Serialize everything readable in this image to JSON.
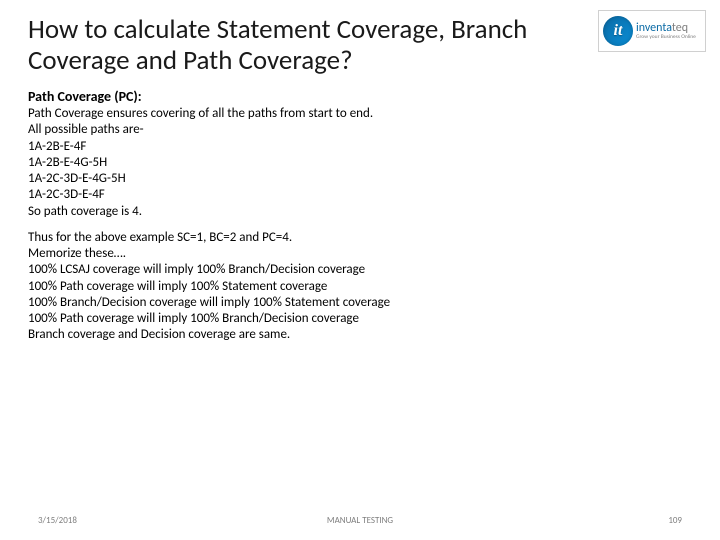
{
  "title": "How to calculate Statement Coverage, Branch Coverage and Path Coverage?",
  "logo": {
    "badge_letter": "it",
    "word_prefix": "inventa",
    "word_suffix": "teq",
    "tagline": "Grow your Business Online"
  },
  "subheading": "Path Coverage (PC):",
  "block1": {
    "l0": "Path Coverage ensures covering of all the paths from start to end.",
    "l1": "All possible paths are-",
    "l2": "1A-2B-E-4F",
    "l3": "1A-2B-E-4G-5H",
    "l4": "1A-2C-3D-E-4G-5H",
    "l5": "1A-2C-3D-E-4F",
    "l6": "So path coverage is 4."
  },
  "block2": {
    "l0": "Thus for the above example SC=1, BC=2 and PC=4.",
    "l1": "Memorize these….",
    "l2": "100% LCSAJ coverage will imply 100% Branch/Decision coverage",
    "l3": "100% Path coverage will imply 100% Statement coverage",
    "l4": "100% Branch/Decision coverage will imply 100% Statement coverage",
    "l5": "100% Path coverage will imply 100% Branch/Decision coverage",
    "l6": "Branch coverage and Decision coverage are same."
  },
  "footer": {
    "date": "3/15/2018",
    "center": "MANUAL TESTING",
    "page": "109"
  },
  "colors": {
    "title": "#1a1a1a",
    "body": "#000000",
    "footer": "#808080",
    "logo_blue": "#0a6aa5",
    "logo_gray": "#808080"
  }
}
